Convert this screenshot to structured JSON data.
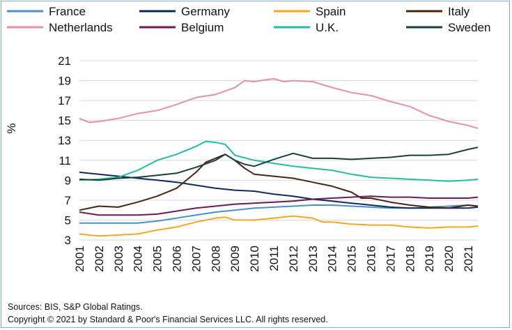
{
  "chart_data": {
    "type": "line",
    "title": "",
    "xlabel": "",
    "ylabel": "%",
    "x_start": 2001,
    "x_end": 2021.5,
    "ylim": [
      3,
      21
    ],
    "y_ticks": [
      3,
      5,
      7,
      9,
      11,
      13,
      15,
      17,
      19,
      21
    ],
    "x_ticks": [
      "2001",
      "2002",
      "2003",
      "2004",
      "2005",
      "2006",
      "2007",
      "2008",
      "2009",
      "2010",
      "2011",
      "2012",
      "2013",
      "2014",
      "2015",
      "2016",
      "2017",
      "2018",
      "2019",
      "2020",
      "2021"
    ],
    "grid": "horizontal",
    "legend_position": "top",
    "series": [
      {
        "name": "France",
        "color": "#4a90c8",
        "points": [
          [
            2001,
            4.7
          ],
          [
            2002,
            4.7
          ],
          [
            2003,
            4.7
          ],
          [
            2004,
            4.7
          ],
          [
            2005,
            4.9
          ],
          [
            2006,
            5.2
          ],
          [
            2007,
            5.5
          ],
          [
            2008,
            5.8
          ],
          [
            2009,
            6.0
          ],
          [
            2010,
            6.2
          ],
          [
            2011,
            6.3
          ],
          [
            2012,
            6.4
          ],
          [
            2013,
            6.5
          ],
          [
            2014,
            6.5
          ],
          [
            2015,
            6.4
          ],
          [
            2016,
            6.3
          ],
          [
            2017,
            6.2
          ],
          [
            2018,
            6.2
          ],
          [
            2019,
            6.3
          ],
          [
            2020,
            6.4
          ],
          [
            2021,
            6.5
          ],
          [
            2021.5,
            6.4
          ]
        ]
      },
      {
        "name": "Germany",
        "color": "#0d2a5e",
        "points": [
          [
            2001,
            9.8
          ],
          [
            2002,
            9.6
          ],
          [
            2003,
            9.4
          ],
          [
            2004,
            9.2
          ],
          [
            2005,
            9.0
          ],
          [
            2006,
            8.8
          ],
          [
            2007,
            8.5
          ],
          [
            2008,
            8.2
          ],
          [
            2009,
            8.0
          ],
          [
            2010,
            7.9
          ],
          [
            2011,
            7.6
          ],
          [
            2012,
            7.4
          ],
          [
            2013,
            7.1
          ],
          [
            2014,
            6.9
          ],
          [
            2015,
            6.7
          ],
          [
            2016,
            6.5
          ],
          [
            2017,
            6.3
          ],
          [
            2018,
            6.2
          ],
          [
            2019,
            6.2
          ],
          [
            2020,
            6.2
          ],
          [
            2021,
            6.2
          ],
          [
            2021.5,
            6.3
          ]
        ]
      },
      {
        "name": "Spain",
        "color": "#f5a623",
        "points": [
          [
            2001,
            3.6
          ],
          [
            2002,
            3.4
          ],
          [
            2003,
            3.5
          ],
          [
            2004,
            3.6
          ],
          [
            2005,
            4.0
          ],
          [
            2006,
            4.3
          ],
          [
            2007,
            4.8
          ],
          [
            2008,
            5.2
          ],
          [
            2008.5,
            5.3
          ],
          [
            2009,
            5.0
          ],
          [
            2010,
            5.0
          ],
          [
            2011,
            5.2
          ],
          [
            2012,
            5.4
          ],
          [
            2013,
            5.2
          ],
          [
            2013.5,
            4.8
          ],
          [
            2014,
            4.8
          ],
          [
            2015,
            4.6
          ],
          [
            2016,
            4.5
          ],
          [
            2017,
            4.5
          ],
          [
            2018,
            4.3
          ],
          [
            2019,
            4.2
          ],
          [
            2020,
            4.3
          ],
          [
            2021,
            4.3
          ],
          [
            2021.5,
            4.4
          ]
        ]
      },
      {
        "name": "Italy",
        "color": "#4a2411",
        "points": [
          [
            2001,
            6.0
          ],
          [
            2002,
            6.4
          ],
          [
            2003,
            6.3
          ],
          [
            2004,
            6.8
          ],
          [
            2005,
            7.4
          ],
          [
            2006,
            8.2
          ],
          [
            2007,
            9.8
          ],
          [
            2007.5,
            10.8
          ],
          [
            2008,
            11.2
          ],
          [
            2008.5,
            11.6
          ],
          [
            2009,
            11.0
          ],
          [
            2009.5,
            10.2
          ],
          [
            2010,
            9.6
          ],
          [
            2011,
            9.4
          ],
          [
            2012,
            9.2
          ],
          [
            2012.5,
            9.0
          ],
          [
            2013,
            8.8
          ],
          [
            2014,
            8.4
          ],
          [
            2015,
            7.8
          ],
          [
            2015.5,
            7.2
          ],
          [
            2016,
            7.2
          ],
          [
            2017,
            6.8
          ],
          [
            2018,
            6.5
          ],
          [
            2019,
            6.3
          ],
          [
            2020,
            6.2
          ],
          [
            2021,
            6.5
          ],
          [
            2021.5,
            6.4
          ]
        ]
      },
      {
        "name": "Netherlands",
        "color": "#e58fb0",
        "points": [
          [
            2001,
            15.2
          ],
          [
            2001.5,
            14.8
          ],
          [
            2002,
            14.9
          ],
          [
            2003,
            15.2
          ],
          [
            2004,
            15.7
          ],
          [
            2005,
            16.0
          ],
          [
            2006,
            16.6
          ],
          [
            2007,
            17.3
          ],
          [
            2008,
            17.6
          ],
          [
            2009,
            18.3
          ],
          [
            2009.5,
            19.0
          ],
          [
            2010,
            18.9
          ],
          [
            2011,
            19.2
          ],
          [
            2011.5,
            18.9
          ],
          [
            2012,
            19.0
          ],
          [
            2013,
            18.9
          ],
          [
            2014,
            18.3
          ],
          [
            2015,
            17.8
          ],
          [
            2016,
            17.5
          ],
          [
            2017,
            16.9
          ],
          [
            2018,
            16.4
          ],
          [
            2019,
            15.5
          ],
          [
            2020,
            14.9
          ],
          [
            2021,
            14.5
          ],
          [
            2021.5,
            14.2
          ]
        ]
      },
      {
        "name": "Belgium",
        "color": "#6a1a54",
        "points": [
          [
            2001,
            5.8
          ],
          [
            2002,
            5.5
          ],
          [
            2003,
            5.5
          ],
          [
            2004,
            5.5
          ],
          [
            2005,
            5.6
          ],
          [
            2006,
            5.9
          ],
          [
            2007,
            6.2
          ],
          [
            2008,
            6.4
          ],
          [
            2009,
            6.6
          ],
          [
            2010,
            6.7
          ],
          [
            2011,
            6.8
          ],
          [
            2012,
            6.9
          ],
          [
            2013,
            7.1
          ],
          [
            2014,
            7.2
          ],
          [
            2015,
            7.3
          ],
          [
            2016,
            7.4
          ],
          [
            2017,
            7.3
          ],
          [
            2018,
            7.3
          ],
          [
            2019,
            7.2
          ],
          [
            2020,
            7.2
          ],
          [
            2021,
            7.2
          ],
          [
            2021.5,
            7.3
          ]
        ]
      },
      {
        "name": "U.K.",
        "color": "#1fbf9f",
        "points": [
          [
            2001,
            9.0
          ],
          [
            2002,
            9.1
          ],
          [
            2003,
            9.3
          ],
          [
            2004,
            10.0
          ],
          [
            2005,
            11.0
          ],
          [
            2006,
            11.6
          ],
          [
            2007,
            12.4
          ],
          [
            2007.5,
            12.9
          ],
          [
            2008,
            12.8
          ],
          [
            2008.5,
            12.6
          ],
          [
            2009,
            11.5
          ],
          [
            2010,
            11.0
          ],
          [
            2011,
            10.7
          ],
          [
            2012,
            10.4
          ],
          [
            2013,
            10.2
          ],
          [
            2014,
            10.0
          ],
          [
            2015,
            9.6
          ],
          [
            2016,
            9.3
          ],
          [
            2017,
            9.2
          ],
          [
            2018,
            9.1
          ],
          [
            2019,
            9.0
          ],
          [
            2020,
            8.9
          ],
          [
            2021,
            9.0
          ],
          [
            2021.5,
            9.1
          ]
        ]
      },
      {
        "name": "Sweden",
        "color": "#173f3c",
        "points": [
          [
            2001,
            9.1
          ],
          [
            2002,
            9.0
          ],
          [
            2003,
            9.2
          ],
          [
            2004,
            9.3
          ],
          [
            2005,
            9.5
          ],
          [
            2006,
            9.7
          ],
          [
            2007,
            10.3
          ],
          [
            2008,
            11.0
          ],
          [
            2008.5,
            11.6
          ],
          [
            2009,
            11.0
          ],
          [
            2009.5,
            10.6
          ],
          [
            2010,
            10.4
          ],
          [
            2011,
            11.1
          ],
          [
            2012,
            11.7
          ],
          [
            2013,
            11.2
          ],
          [
            2014,
            11.2
          ],
          [
            2015,
            11.1
          ],
          [
            2016,
            11.2
          ],
          [
            2017,
            11.3
          ],
          [
            2018,
            11.5
          ],
          [
            2019,
            11.5
          ],
          [
            2020,
            11.6
          ],
          [
            2021,
            12.1
          ],
          [
            2021.5,
            12.3
          ]
        ]
      }
    ]
  },
  "footer": {
    "sources": "Sources: BIS, S&P Global Ratings.",
    "copyright": "Copyright © 2021 by Standard & Poor's Financial Services LLC. All rights reserved."
  }
}
